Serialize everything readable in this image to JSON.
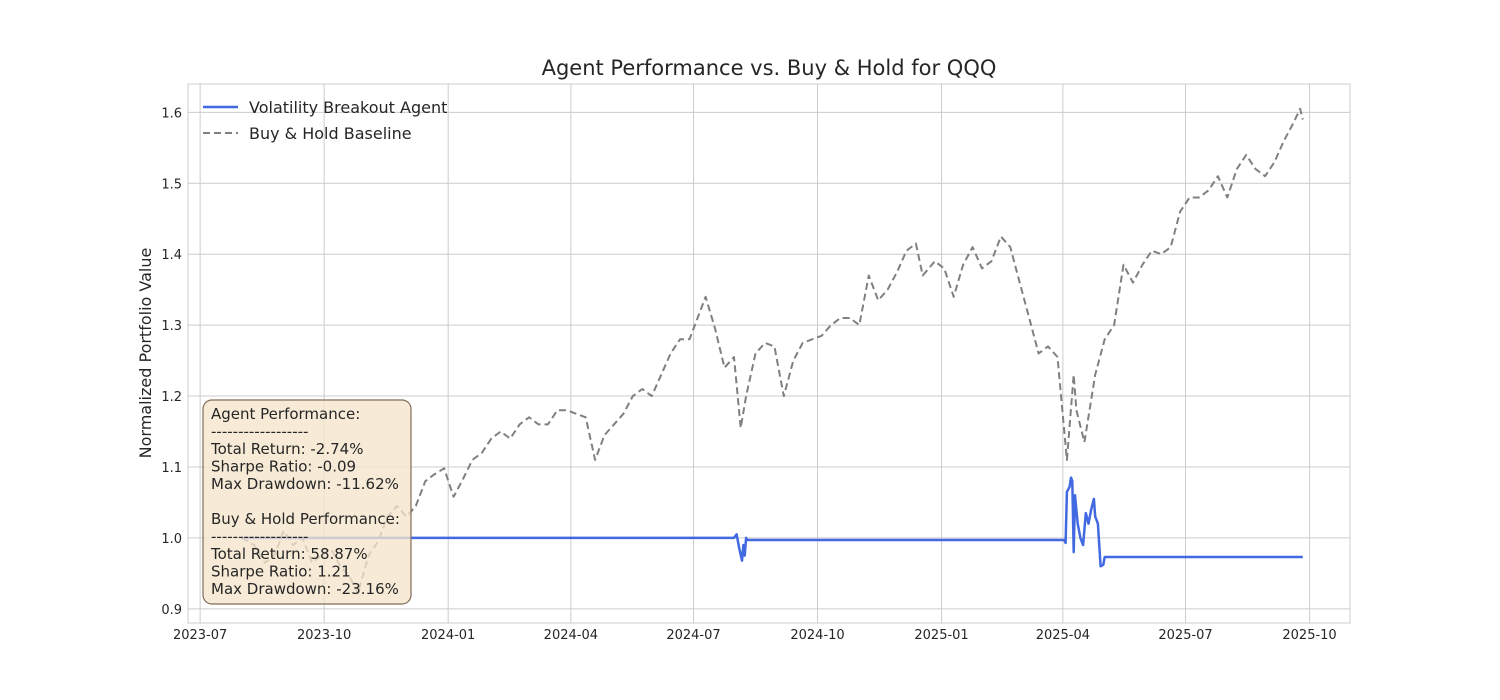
{
  "chart_data": {
    "type": "line",
    "title": "Agent Performance vs. Buy & Hold for QQQ",
    "xlabel": "",
    "ylabel": "Normalized Portfolio Value",
    "x_ticks": [
      "2023-07",
      "2023-10",
      "2024-01",
      "2024-04",
      "2024-07",
      "2024-10",
      "2025-01",
      "2025-04",
      "2025-07",
      "2025-10"
    ],
    "y_ticks": [
      "0.9",
      "1.0",
      "1.1",
      "1.2",
      "1.3",
      "1.4",
      "1.5",
      "1.6"
    ],
    "xlim": [
      "2023-06-22",
      "2025-10-31"
    ],
    "ylim": [
      0.88,
      1.64
    ],
    "grid": true,
    "legend_position": "top-left",
    "series": [
      {
        "name": "Volatility Breakout Agent",
        "color": "#4169e1",
        "style": "solid",
        "points": [
          [
            "2023-08-01",
            1.0
          ],
          [
            "2024-07-31",
            1.0
          ],
          [
            "2024-08-02",
            1.005
          ],
          [
            "2024-08-04",
            0.985
          ],
          [
            "2024-08-06",
            0.968
          ],
          [
            "2024-08-07",
            0.99
          ],
          [
            "2024-08-08",
            0.975
          ],
          [
            "2024-08-09",
            1.0
          ],
          [
            "2024-08-10",
            0.997
          ],
          [
            "2025-04-02",
            0.997
          ],
          [
            "2025-04-03",
            0.993
          ],
          [
            "2025-04-04",
            1.065
          ],
          [
            "2025-04-06",
            1.072
          ],
          [
            "2025-04-07",
            1.085
          ],
          [
            "2025-04-08",
            1.08
          ],
          [
            "2025-04-09",
            0.98
          ],
          [
            "2025-04-10",
            1.06
          ],
          [
            "2025-04-12",
            1.02
          ],
          [
            "2025-04-14",
            1.0
          ],
          [
            "2025-04-16",
            0.99
          ],
          [
            "2025-04-18",
            1.035
          ],
          [
            "2025-04-20",
            1.02
          ],
          [
            "2025-04-22",
            1.04
          ],
          [
            "2025-04-24",
            1.055
          ],
          [
            "2025-04-25",
            1.03
          ],
          [
            "2025-04-27",
            1.02
          ],
          [
            "2025-04-29",
            0.96
          ],
          [
            "2025-05-01",
            0.962
          ],
          [
            "2025-05-02",
            0.973
          ],
          [
            "2025-09-26",
            0.973
          ]
        ]
      },
      {
        "name": "Buy & Hold Baseline",
        "color": "#808080",
        "style": "dashed",
        "points": [
          [
            "2023-08-01",
            1.0
          ],
          [
            "2023-08-10",
            0.99
          ],
          [
            "2023-08-18",
            0.965
          ],
          [
            "2023-08-25",
            0.975
          ],
          [
            "2023-09-01",
            1.01
          ],
          [
            "2023-09-08",
            0.99
          ],
          [
            "2023-09-15",
            1.0
          ],
          [
            "2023-09-22",
            0.965
          ],
          [
            "2023-09-29",
            0.975
          ],
          [
            "2023-10-06",
            0.985
          ],
          [
            "2023-10-13",
            0.96
          ],
          [
            "2023-10-20",
            0.945
          ],
          [
            "2023-10-26",
            0.922
          ],
          [
            "2023-11-03",
            0.975
          ],
          [
            "2023-11-10",
            0.995
          ],
          [
            "2023-11-17",
            1.03
          ],
          [
            "2023-11-24",
            1.045
          ],
          [
            "2023-12-01",
            1.03
          ],
          [
            "2023-12-08",
            1.045
          ],
          [
            "2023-12-15",
            1.08
          ],
          [
            "2023-12-22",
            1.09
          ],
          [
            "2023-12-29",
            1.098
          ],
          [
            "2024-01-05",
            1.058
          ],
          [
            "2024-01-12",
            1.083
          ],
          [
            "2024-01-19",
            1.11
          ],
          [
            "2024-01-26",
            1.12
          ],
          [
            "2024-02-02",
            1.14
          ],
          [
            "2024-02-09",
            1.15
          ],
          [
            "2024-02-16",
            1.14
          ],
          [
            "2024-02-23",
            1.16
          ],
          [
            "2024-03-01",
            1.17
          ],
          [
            "2024-03-08",
            1.16
          ],
          [
            "2024-03-15",
            1.16
          ],
          [
            "2024-03-22",
            1.18
          ],
          [
            "2024-03-29",
            1.18
          ],
          [
            "2024-04-05",
            1.175
          ],
          [
            "2024-04-12",
            1.17
          ],
          [
            "2024-04-19",
            1.11
          ],
          [
            "2024-04-26",
            1.145
          ],
          [
            "2024-05-03",
            1.16
          ],
          [
            "2024-05-10",
            1.175
          ],
          [
            "2024-05-17",
            1.2
          ],
          [
            "2024-05-24",
            1.21
          ],
          [
            "2024-05-31",
            1.2
          ],
          [
            "2024-06-07",
            1.23
          ],
          [
            "2024-06-14",
            1.26
          ],
          [
            "2024-06-21",
            1.28
          ],
          [
            "2024-06-28",
            1.28
          ],
          [
            "2024-07-05",
            1.315
          ],
          [
            "2024-07-10",
            1.34
          ],
          [
            "2024-07-17",
            1.295
          ],
          [
            "2024-07-24",
            1.24
          ],
          [
            "2024-07-31",
            1.255
          ],
          [
            "2024-08-05",
            1.155
          ],
          [
            "2024-08-09",
            1.2
          ],
          [
            "2024-08-16",
            1.26
          ],
          [
            "2024-08-23",
            1.275
          ],
          [
            "2024-08-30",
            1.27
          ],
          [
            "2024-09-06",
            1.2
          ],
          [
            "2024-09-13",
            1.25
          ],
          [
            "2024-09-20",
            1.275
          ],
          [
            "2024-09-27",
            1.28
          ],
          [
            "2024-10-04",
            1.285
          ],
          [
            "2024-10-11",
            1.3
          ],
          [
            "2024-10-18",
            1.31
          ],
          [
            "2024-10-25",
            1.31
          ],
          [
            "2024-11-01",
            1.3
          ],
          [
            "2024-11-08",
            1.37
          ],
          [
            "2024-11-15",
            1.335
          ],
          [
            "2024-11-22",
            1.35
          ],
          [
            "2024-11-29",
            1.375
          ],
          [
            "2024-12-06",
            1.405
          ],
          [
            "2024-12-13",
            1.415
          ],
          [
            "2024-12-18",
            1.37
          ],
          [
            "2024-12-27",
            1.39
          ],
          [
            "2025-01-03",
            1.38
          ],
          [
            "2025-01-10",
            1.34
          ],
          [
            "2025-01-17",
            1.385
          ],
          [
            "2025-01-24",
            1.41
          ],
          [
            "2025-01-31",
            1.38
          ],
          [
            "2025-02-07",
            1.39
          ],
          [
            "2025-02-14",
            1.425
          ],
          [
            "2025-02-21",
            1.41
          ],
          [
            "2025-02-28",
            1.36
          ],
          [
            "2025-03-07",
            1.31
          ],
          [
            "2025-03-14",
            1.26
          ],
          [
            "2025-03-21",
            1.27
          ],
          [
            "2025-03-28",
            1.255
          ],
          [
            "2025-04-04",
            1.11
          ],
          [
            "2025-04-09",
            1.23
          ],
          [
            "2025-04-11",
            1.18
          ],
          [
            "2025-04-17",
            1.135
          ],
          [
            "2025-04-25",
            1.23
          ],
          [
            "2025-05-02",
            1.28
          ],
          [
            "2025-05-09",
            1.3
          ],
          [
            "2025-05-16",
            1.385
          ],
          [
            "2025-05-23",
            1.36
          ],
          [
            "2025-05-30",
            1.385
          ],
          [
            "2025-06-06",
            1.405
          ],
          [
            "2025-06-13",
            1.4
          ],
          [
            "2025-06-20",
            1.41
          ],
          [
            "2025-06-27",
            1.46
          ],
          [
            "2025-07-04",
            1.48
          ],
          [
            "2025-07-11",
            1.48
          ],
          [
            "2025-07-18",
            1.49
          ],
          [
            "2025-07-25",
            1.51
          ],
          [
            "2025-08-01",
            1.48
          ],
          [
            "2025-08-08",
            1.52
          ],
          [
            "2025-08-15",
            1.54
          ],
          [
            "2025-08-22",
            1.52
          ],
          [
            "2025-08-29",
            1.51
          ],
          [
            "2025-09-05",
            1.53
          ],
          [
            "2025-09-12",
            1.56
          ],
          [
            "2025-09-19",
            1.585
          ],
          [
            "2025-09-24",
            1.605
          ],
          [
            "2025-09-26",
            1.59
          ]
        ]
      }
    ],
    "annotation_box": {
      "lines": [
        "Agent Performance:",
        "------------------",
        "Total Return: -2.74%",
        "Sharpe Ratio: -0.09",
        "Max Drawdown: -11.62%",
        "",
        "Buy & Hold Performance:",
        "------------------",
        "Total Return: 58.87%",
        "Sharpe Ratio: 1.21",
        "Max Drawdown: -23.16%"
      ]
    }
  }
}
